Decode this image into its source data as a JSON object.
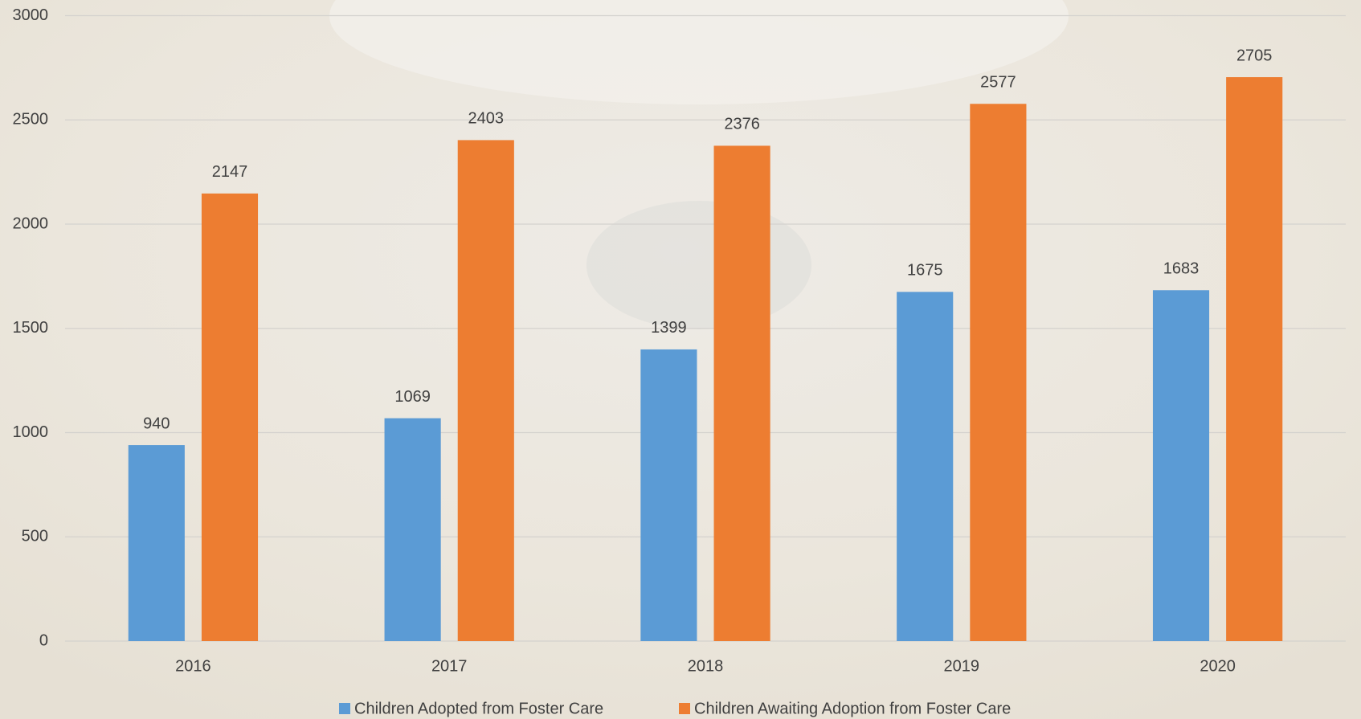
{
  "chart_data": {
    "type": "bar",
    "categories": [
      "2016",
      "2017",
      "2018",
      "2019",
      "2020"
    ],
    "series": [
      {
        "name": "Children Adopted from Foster Care",
        "color": "#5b9bd5",
        "values": [
          940,
          1069,
          1399,
          1675,
          1683
        ]
      },
      {
        "name": "Children Awaiting Adoption from Foster Care",
        "color": "#ed7d31",
        "values": [
          2147,
          2403,
          2376,
          2577,
          2705
        ]
      }
    ],
    "ylim": [
      0,
      3000
    ],
    "yticks": [
      0,
      500,
      1000,
      1500,
      2000,
      2500,
      3000
    ],
    "grid": true,
    "legend": "bottom",
    "data_labels": true
  }
}
